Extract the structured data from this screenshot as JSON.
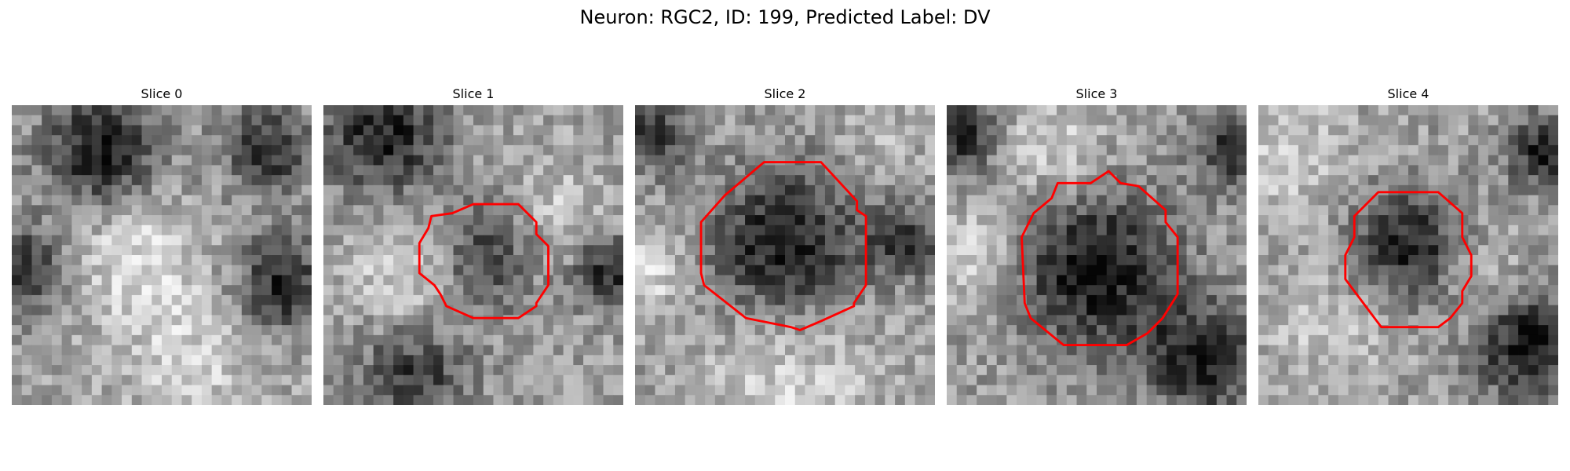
{
  "title": "Neuron: RGC2, ID: 199, Predicted Label: DV",
  "panels": [
    {
      "label": "Slice 0",
      "seed": 11,
      "blobs": [
        [
          0.3,
          0.15,
          0.18,
          -0.55
        ],
        [
          0.85,
          0.15,
          0.14,
          -0.45
        ],
        [
          0.05,
          0.55,
          0.14,
          -0.45
        ],
        [
          0.9,
          0.6,
          0.15,
          -0.5
        ],
        [
          0.4,
          0.5,
          0.2,
          0.25
        ],
        [
          0.6,
          0.85,
          0.25,
          0.2
        ]
      ],
      "outline": []
    },
    {
      "label": "Slice 1",
      "seed": 23,
      "blobs": [
        [
          0.2,
          0.1,
          0.2,
          -0.5
        ],
        [
          0.55,
          0.5,
          0.18,
          -0.45
        ],
        [
          0.95,
          0.55,
          0.12,
          -0.5
        ],
        [
          0.3,
          0.9,
          0.18,
          -0.4
        ],
        [
          0.3,
          0.55,
          0.2,
          0.25
        ],
        [
          0.75,
          0.4,
          0.2,
          0.2
        ]
      ],
      "outline": [
        [
          0.5,
          0.33
        ],
        [
          0.65,
          0.33
        ],
        [
          0.71,
          0.39
        ],
        [
          0.71,
          0.43
        ],
        [
          0.75,
          0.47
        ],
        [
          0.75,
          0.6
        ],
        [
          0.71,
          0.66
        ],
        [
          0.71,
          0.67
        ],
        [
          0.65,
          0.71
        ],
        [
          0.5,
          0.71
        ],
        [
          0.41,
          0.67
        ],
        [
          0.39,
          0.63
        ],
        [
          0.37,
          0.6
        ],
        [
          0.32,
          0.56
        ],
        [
          0.32,
          0.46
        ],
        [
          0.35,
          0.41
        ],
        [
          0.36,
          0.37
        ],
        [
          0.43,
          0.36
        ]
      ]
    },
    {
      "label": "Slice 2",
      "seed": 37,
      "blobs": [
        [
          0.5,
          0.47,
          0.25,
          -0.55
        ],
        [
          0.9,
          0.45,
          0.12,
          -0.4
        ],
        [
          0.05,
          0.1,
          0.12,
          -0.4
        ],
        [
          0.5,
          0.9,
          0.3,
          0.2
        ],
        [
          0.05,
          0.55,
          0.12,
          0.25
        ],
        [
          0.8,
          0.15,
          0.15,
          0.1
        ]
      ],
      "outline": [
        [
          0.43,
          0.19
        ],
        [
          0.62,
          0.19
        ],
        [
          0.74,
          0.32
        ],
        [
          0.74,
          0.35
        ],
        [
          0.77,
          0.37
        ],
        [
          0.77,
          0.6
        ],
        [
          0.73,
          0.66
        ],
        [
          0.73,
          0.67
        ],
        [
          0.62,
          0.72
        ],
        [
          0.55,
          0.75
        ],
        [
          0.52,
          0.74
        ],
        [
          0.47,
          0.73
        ],
        [
          0.37,
          0.71
        ],
        [
          0.23,
          0.6
        ],
        [
          0.22,
          0.56
        ],
        [
          0.22,
          0.39
        ],
        [
          0.3,
          0.3
        ]
      ]
    },
    {
      "label": "Slice 3",
      "seed": 53,
      "blobs": [
        [
          0.5,
          0.55,
          0.27,
          -0.55
        ],
        [
          0.95,
          0.15,
          0.12,
          -0.45
        ],
        [
          0.05,
          0.1,
          0.12,
          -0.5
        ],
        [
          0.85,
          0.85,
          0.18,
          -0.5
        ],
        [
          0.1,
          0.5,
          0.15,
          0.25
        ],
        [
          0.35,
          0.15,
          0.2,
          0.2
        ]
      ],
      "outline": [
        [
          0.48,
          0.26
        ],
        [
          0.54,
          0.22
        ],
        [
          0.58,
          0.26
        ],
        [
          0.64,
          0.27
        ],
        [
          0.73,
          0.35
        ],
        [
          0.73,
          0.39
        ],
        [
          0.77,
          0.44
        ],
        [
          0.77,
          0.63
        ],
        [
          0.72,
          0.71
        ],
        [
          0.67,
          0.76
        ],
        [
          0.6,
          0.8
        ],
        [
          0.54,
          0.8
        ],
        [
          0.39,
          0.8
        ],
        [
          0.28,
          0.71
        ],
        [
          0.26,
          0.66
        ],
        [
          0.25,
          0.44
        ],
        [
          0.29,
          0.36
        ],
        [
          0.35,
          0.31
        ],
        [
          0.37,
          0.26
        ]
      ]
    },
    {
      "label": "Slice 4",
      "seed": 71,
      "blobs": [
        [
          0.5,
          0.47,
          0.18,
          -0.5
        ],
        [
          0.95,
          0.15,
          0.12,
          -0.5
        ],
        [
          0.9,
          0.8,
          0.18,
          -0.55
        ],
        [
          0.1,
          0.15,
          0.2,
          0.2
        ],
        [
          0.25,
          0.75,
          0.2,
          0.15
        ],
        [
          0.75,
          0.6,
          0.15,
          0.15
        ]
      ],
      "outline": [
        [
          0.4,
          0.29
        ],
        [
          0.6,
          0.29
        ],
        [
          0.68,
          0.36
        ],
        [
          0.68,
          0.44
        ],
        [
          0.71,
          0.5
        ],
        [
          0.71,
          0.57
        ],
        [
          0.68,
          0.62
        ],
        [
          0.68,
          0.66
        ],
        [
          0.64,
          0.71
        ],
        [
          0.6,
          0.74
        ],
        [
          0.41,
          0.74
        ],
        [
          0.35,
          0.66
        ],
        [
          0.32,
          0.62
        ],
        [
          0.29,
          0.58
        ],
        [
          0.29,
          0.5
        ],
        [
          0.32,
          0.44
        ],
        [
          0.32,
          0.37
        ]
      ]
    }
  ],
  "outline_color": "#ff0000",
  "grid_size": 30
}
